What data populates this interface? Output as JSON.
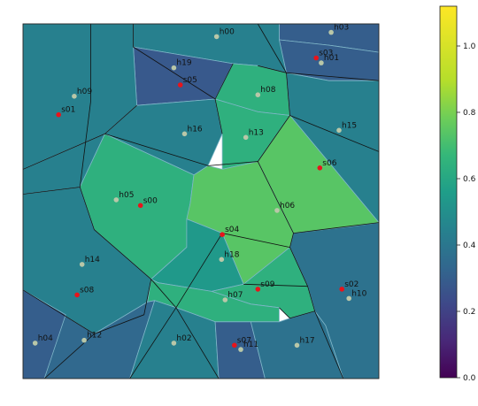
{
  "chart_data": {
    "type": "voronoi",
    "title": "",
    "xlabel": "",
    "ylabel": "",
    "xlim": [
      0,
      1
    ],
    "ylim": [
      0,
      1
    ],
    "axis_ticks_visible": false,
    "grid": false,
    "colormap": "viridis",
    "colorbar": {
      "min": 0.0,
      "max": 1.12,
      "ticks": [
        "0.0",
        "0.2",
        "0.4",
        "0.6",
        "0.8",
        "1.0"
      ],
      "tick_values": [
        0.0,
        0.2,
        0.4,
        0.6,
        0.8,
        1.0
      ]
    },
    "s_points": [
      {
        "name": "s00",
        "x": 0.33,
        "y": 0.488
      },
      {
        "name": "s01",
        "x": 0.1,
        "y": 0.744
      },
      {
        "name": "s02",
        "x": 0.896,
        "y": 0.252
      },
      {
        "name": "s03",
        "x": 0.824,
        "y": 0.904
      },
      {
        "name": "s04",
        "x": 0.56,
        "y": 0.406
      },
      {
        "name": "s05",
        "x": 0.442,
        "y": 0.828
      },
      {
        "name": "s06",
        "x": 0.834,
        "y": 0.594
      },
      {
        "name": "s07",
        "x": 0.594,
        "y": 0.094
      },
      {
        "name": "s08",
        "x": 0.152,
        "y": 0.236
      },
      {
        "name": "s09",
        "x": 0.66,
        "y": 0.252
      }
    ],
    "h_points": [
      {
        "name": "h00",
        "x": 0.544,
        "y": 0.964
      },
      {
        "name": "h01",
        "x": 0.838,
        "y": 0.89
      },
      {
        "name": "h02",
        "x": 0.424,
        "y": 0.1
      },
      {
        "name": "h03",
        "x": 0.866,
        "y": 0.976
      },
      {
        "name": "h04",
        "x": 0.034,
        "y": 0.1
      },
      {
        "name": "h05",
        "x": 0.262,
        "y": 0.504
      },
      {
        "name": "h06",
        "x": 0.714,
        "y": 0.474
      },
      {
        "name": "h07",
        "x": 0.568,
        "y": 0.222
      },
      {
        "name": "h08",
        "x": 0.66,
        "y": 0.8
      },
      {
        "name": "h09",
        "x": 0.144,
        "y": 0.796
      },
      {
        "name": "h10",
        "x": 0.916,
        "y": 0.226
      },
      {
        "name": "h11",
        "x": 0.612,
        "y": 0.082
      },
      {
        "name": "h12",
        "x": 0.172,
        "y": 0.108
      },
      {
        "name": "h13",
        "x": 0.626,
        "y": 0.68
      },
      {
        "name": "h14",
        "x": 0.166,
        "y": 0.322
      },
      {
        "name": "h15",
        "x": 0.888,
        "y": 0.7
      },
      {
        "name": "h16",
        "x": 0.454,
        "y": 0.69
      },
      {
        "name": "h17",
        "x": 0.77,
        "y": 0.094
      },
      {
        "name": "h18",
        "x": 0.558,
        "y": 0.336
      },
      {
        "name": "h19",
        "x": 0.424,
        "y": 0.876
      }
    ],
    "regions": [
      {
        "name": "h03",
        "value": 0.3,
        "poly": [
          [
            0.72,
            1.0
          ],
          [
            1.0,
            1.0
          ],
          [
            1.0,
            0.92
          ],
          [
            0.86,
            0.94
          ],
          [
            0.72,
            0.955
          ]
        ]
      },
      {
        "name": "s03",
        "value": 0.3,
        "poly": [
          [
            0.72,
            0.955
          ],
          [
            0.86,
            0.94
          ],
          [
            1.0,
            0.92
          ],
          [
            1.0,
            0.84
          ],
          [
            0.86,
            0.84
          ],
          [
            0.74,
            0.862
          ]
        ]
      },
      {
        "name": "h00",
        "value": 0.44,
        "poly": [
          [
            0.31,
            1.0
          ],
          [
            0.72,
            1.0
          ],
          [
            0.72,
            0.955
          ],
          [
            0.74,
            0.862
          ],
          [
            0.66,
            0.882
          ],
          [
            0.59,
            0.888
          ],
          [
            0.31,
            0.935
          ]
        ]
      },
      {
        "name": "h19",
        "value": 0.28,
        "poly": [
          [
            0.31,
            0.935
          ],
          [
            0.59,
            0.888
          ],
          [
            0.54,
            0.788
          ],
          [
            0.32,
            0.77
          ]
        ]
      },
      {
        "name": "h08",
        "value": 0.64,
        "poly": [
          [
            0.59,
            0.888
          ],
          [
            0.66,
            0.882
          ],
          [
            0.74,
            0.862
          ],
          [
            0.75,
            0.742
          ],
          [
            0.66,
            0.752
          ],
          [
            0.54,
            0.788
          ]
        ]
      },
      {
        "name": "h09",
        "value": 0.44,
        "poly": [
          [
            0.0,
            1.0
          ],
          [
            0.31,
            1.0
          ],
          [
            0.31,
            0.935
          ],
          [
            0.32,
            0.77
          ],
          [
            0.23,
            0.69
          ],
          [
            0.0,
            0.59
          ]
        ]
      },
      {
        "name": "h15",
        "value": 0.44,
        "poly": [
          [
            0.74,
            0.862
          ],
          [
            0.86,
            0.84
          ],
          [
            1.0,
            0.84
          ],
          [
            1.0,
            0.44
          ],
          [
            0.75,
            0.742
          ]
        ]
      },
      {
        "name": "h16",
        "value": 0.44,
        "poly": [
          [
            0.32,
            0.77
          ],
          [
            0.54,
            0.788
          ],
          [
            0.56,
            0.69
          ],
          [
            0.52,
            0.6
          ],
          [
            0.48,
            0.574
          ],
          [
            0.23,
            0.69
          ]
        ]
      },
      {
        "name": "h13",
        "value": 0.64,
        "poly": [
          [
            0.54,
            0.788
          ],
          [
            0.66,
            0.752
          ],
          [
            0.75,
            0.742
          ],
          [
            0.66,
            0.612
          ],
          [
            0.56,
            0.59
          ],
          [
            0.56,
            0.69
          ]
        ]
      },
      {
        "name": "s06",
        "value": 0.74,
        "poly": [
          [
            0.66,
            0.612
          ],
          [
            0.75,
            0.742
          ],
          [
            1.0,
            0.44
          ],
          [
            1.0,
            0.44
          ],
          [
            0.93,
            0.43
          ],
          [
            0.76,
            0.41
          ]
        ]
      },
      {
        "name": "s01",
        "value": 0.44,
        "poly": [
          [
            0.0,
            0.59
          ],
          [
            0.23,
            0.69
          ],
          [
            0.16,
            0.54
          ],
          [
            0.0,
            0.52
          ]
        ]
      },
      {
        "name": "h05",
        "value": 0.64,
        "poly": [
          [
            0.16,
            0.54
          ],
          [
            0.23,
            0.69
          ],
          [
            0.48,
            0.574
          ],
          [
            0.47,
            0.494
          ],
          [
            0.46,
            0.37
          ],
          [
            0.36,
            0.28
          ],
          [
            0.2,
            0.42
          ]
        ]
      },
      {
        "name": "h06",
        "value": 0.74,
        "poly": [
          [
            0.47,
            0.494
          ],
          [
            0.48,
            0.574
          ],
          [
            0.52,
            0.6
          ],
          [
            0.56,
            0.59
          ],
          [
            0.66,
            0.612
          ],
          [
            0.76,
            0.41
          ],
          [
            0.75,
            0.37
          ],
          [
            0.62,
            0.266
          ],
          [
            0.56,
            0.41
          ],
          [
            0.46,
            0.45
          ]
        ]
      },
      {
        "name": "h14",
        "value": 0.44,
        "poly": [
          [
            0.0,
            0.52
          ],
          [
            0.16,
            0.54
          ],
          [
            0.2,
            0.42
          ],
          [
            0.36,
            0.28
          ],
          [
            0.35,
            0.216
          ],
          [
            0.2,
            0.126
          ],
          [
            0.0,
            0.25
          ]
        ]
      },
      {
        "name": "h18",
        "value": 0.54,
        "poly": [
          [
            0.46,
            0.45
          ],
          [
            0.56,
            0.41
          ],
          [
            0.62,
            0.266
          ],
          [
            0.53,
            0.246
          ],
          [
            0.38,
            0.27
          ],
          [
            0.36,
            0.28
          ],
          [
            0.46,
            0.37
          ]
        ]
      },
      {
        "name": "s02",
        "value": 0.38,
        "poly": [
          [
            0.75,
            0.37
          ],
          [
            0.76,
            0.41
          ],
          [
            0.93,
            0.43
          ],
          [
            1.0,
            0.44
          ],
          [
            1.0,
            0.0
          ],
          [
            0.9,
            0.0
          ],
          [
            0.85,
            0.15
          ],
          [
            0.82,
            0.19
          ],
          [
            0.8,
            0.26
          ]
        ]
      },
      {
        "name": "s09",
        "value": 0.64,
        "poly": [
          [
            0.53,
            0.246
          ],
          [
            0.62,
            0.266
          ],
          [
            0.75,
            0.37
          ],
          [
            0.8,
            0.26
          ],
          [
            0.82,
            0.19
          ],
          [
            0.75,
            0.17
          ],
          [
            0.72,
            0.2
          ],
          [
            0.64,
            0.21
          ]
        ]
      },
      {
        "name": "h07",
        "value": 0.64,
        "poly": [
          [
            0.38,
            0.27
          ],
          [
            0.53,
            0.246
          ],
          [
            0.64,
            0.21
          ],
          [
            0.72,
            0.2
          ],
          [
            0.72,
            0.16
          ],
          [
            0.64,
            0.16
          ],
          [
            0.54,
            0.16
          ],
          [
            0.43,
            0.2
          ],
          [
            0.37,
            0.22
          ],
          [
            0.35,
            0.216
          ],
          [
            0.36,
            0.28
          ]
        ]
      },
      {
        "name": "s08",
        "value": 0.34,
        "poly": [
          [
            0.0,
            0.25
          ],
          [
            0.2,
            0.126
          ],
          [
            0.35,
            0.216
          ],
          [
            0.37,
            0.22
          ],
          [
            0.3,
            0.0
          ],
          [
            0.0,
            0.0
          ]
        ]
      },
      {
        "name": "h04",
        "value": 0.3,
        "poly": [
          [
            0.0,
            0.25
          ],
          [
            0.0,
            0.0
          ],
          [
            0.06,
            0.0
          ],
          [
            0.12,
            0.18
          ]
        ]
      },
      {
        "name": "h02",
        "value": 0.44,
        "poly": [
          [
            0.3,
            0.0
          ],
          [
            0.37,
            0.22
          ],
          [
            0.43,
            0.2
          ],
          [
            0.54,
            0.16
          ],
          [
            0.55,
            0.0
          ]
        ]
      },
      {
        "name": "s07",
        "value": 0.3,
        "poly": [
          [
            0.54,
            0.16
          ],
          [
            0.64,
            0.16
          ],
          [
            0.68,
            0.0
          ],
          [
            0.55,
            0.0
          ]
        ]
      },
      {
        "name": "h17",
        "value": 0.38,
        "poly": [
          [
            0.64,
            0.16
          ],
          [
            0.72,
            0.16
          ],
          [
            0.75,
            0.17
          ],
          [
            0.82,
            0.19
          ],
          [
            0.85,
            0.15
          ],
          [
            0.9,
            0.0
          ],
          [
            0.68,
            0.0
          ]
        ]
      }
    ],
    "black_lines": [
      [
        [
          0.19,
          1.0
        ],
        [
          0.19,
          0.78
        ],
        [
          0.16,
          0.54
        ],
        [
          0.0,
          0.52
        ]
      ],
      [
        [
          0.16,
          0.54
        ],
        [
          0.2,
          0.42
        ],
        [
          0.36,
          0.28
        ],
        [
          0.34,
          0.18
        ],
        [
          0.2,
          0.126
        ],
        [
          0.0,
          0.25
        ]
      ],
      [
        [
          0.36,
          0.28
        ],
        [
          0.43,
          0.2
        ],
        [
          0.55,
          0.0
        ]
      ],
      [
        [
          0.43,
          0.2
        ],
        [
          0.3,
          0.0
        ]
      ],
      [
        [
          0.2,
          0.126
        ],
        [
          0.06,
          0.0
        ]
      ],
      [
        [
          0.23,
          0.69
        ],
        [
          0.52,
          0.6
        ],
        [
          0.66,
          0.612
        ],
        [
          0.76,
          0.41
        ],
        [
          0.75,
          0.37
        ],
        [
          0.8,
          0.26
        ],
        [
          0.82,
          0.19
        ],
        [
          0.9,
          0.0
        ]
      ],
      [
        [
          0.76,
          0.41
        ],
        [
          1.0,
          0.44
        ]
      ],
      [
        [
          0.75,
          0.37
        ],
        [
          0.56,
          0.41
        ],
        [
          0.43,
          0.2
        ]
      ],
      [
        [
          0.66,
          0.612
        ],
        [
          0.75,
          0.742
        ],
        [
          0.74,
          0.862
        ],
        [
          0.66,
          1.0
        ]
      ],
      [
        [
          0.59,
          0.888
        ],
        [
          0.54,
          0.788
        ]
      ],
      [
        [
          0.66,
          0.882
        ],
        [
          0.74,
          0.862
        ],
        [
          1.0,
          0.84
        ]
      ],
      [
        [
          0.75,
          0.742
        ],
        [
          1.0,
          0.64
        ]
      ],
      [
        [
          0.56,
          0.69
        ],
        [
          0.54,
          0.788
        ],
        [
          0.31,
          0.935
        ],
        [
          0.31,
          1.0
        ]
      ],
      [
        [
          0.32,
          0.77
        ],
        [
          0.23,
          0.69
        ],
        [
          0.0,
          0.59
        ]
      ],
      [
        [
          0.75,
          0.17
        ],
        [
          0.82,
          0.19
        ]
      ],
      [
        [
          0.72,
          0.2
        ],
        [
          0.75,
          0.17
        ]
      ],
      [
        [
          0.62,
          0.266
        ],
        [
          0.8,
          0.26
        ]
      ]
    ]
  }
}
